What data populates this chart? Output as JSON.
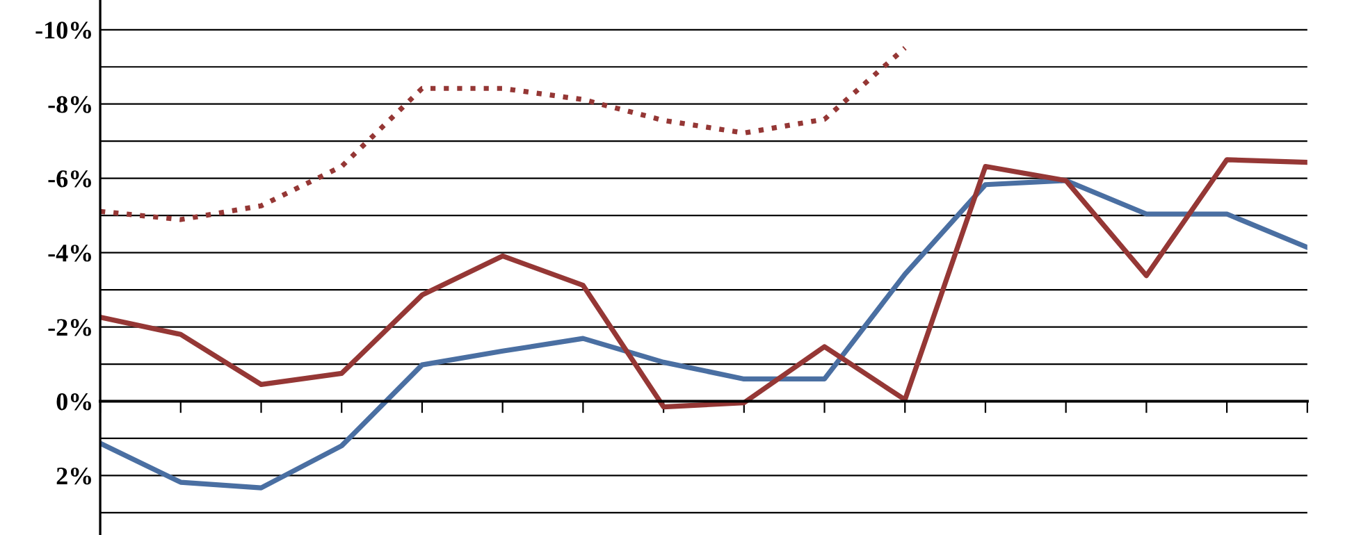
{
  "chart_data": {
    "type": "line",
    "categories": [
      null,
      null,
      null,
      null,
      null,
      null,
      null,
      null,
      null,
      null,
      null,
      null,
      null,
      null,
      null,
      null
    ],
    "series": [
      {
        "color": "#4a6fa2",
        "values": [
          1.13,
          2.18,
          2.33,
          1.2,
          -0.98,
          -1.35,
          -1.69,
          -1.05,
          -0.6,
          -0.6,
          -3.42,
          -5.83,
          -5.94,
          -5.04,
          -5.04,
          -4.14
        ]
      },
      {
        "color": "#953735",
        "values": [
          -2.26,
          -1.8,
          -0.45,
          -0.75,
          -2.86,
          -3.91,
          -3.12,
          0.15,
          0.04,
          -1.47,
          -0.04,
          -6.32,
          -5.94,
          -3.38,
          -6.5,
          -6.43
        ]
      },
      {
        "color": "#953735",
        "line_style": "dotted",
        "values": [
          -5.11,
          -4.89,
          -5.26,
          -6.32,
          -8.42,
          -8.42,
          -8.12,
          -7.56,
          -7.22,
          -7.59,
          -9.51,
          null,
          null,
          null,
          null,
          null
        ]
      }
    ],
    "ylim": [
      3.6,
      -10.8
    ],
    "yticks": [
      {
        "value": -10,
        "label": "-10%"
      },
      {
        "value": -9,
        "label": null
      },
      {
        "value": -8,
        "label": "-8%"
      },
      {
        "value": -7,
        "label": null
      },
      {
        "value": -6,
        "label": "-6%"
      },
      {
        "value": -5,
        "label": null
      },
      {
        "value": -4,
        "label": "-4%"
      },
      {
        "value": -3,
        "label": null
      },
      {
        "value": -2,
        "label": "-2%"
      },
      {
        "value": -1,
        "label": null
      },
      {
        "value": 0,
        "label": "0%"
      },
      {
        "value": 1,
        "label": null
      },
      {
        "value": 2,
        "label": "2%"
      },
      {
        "value": 3,
        "label": null
      }
    ],
    "grid": "y",
    "tick_labels": "y",
    "marker": "none"
  }
}
